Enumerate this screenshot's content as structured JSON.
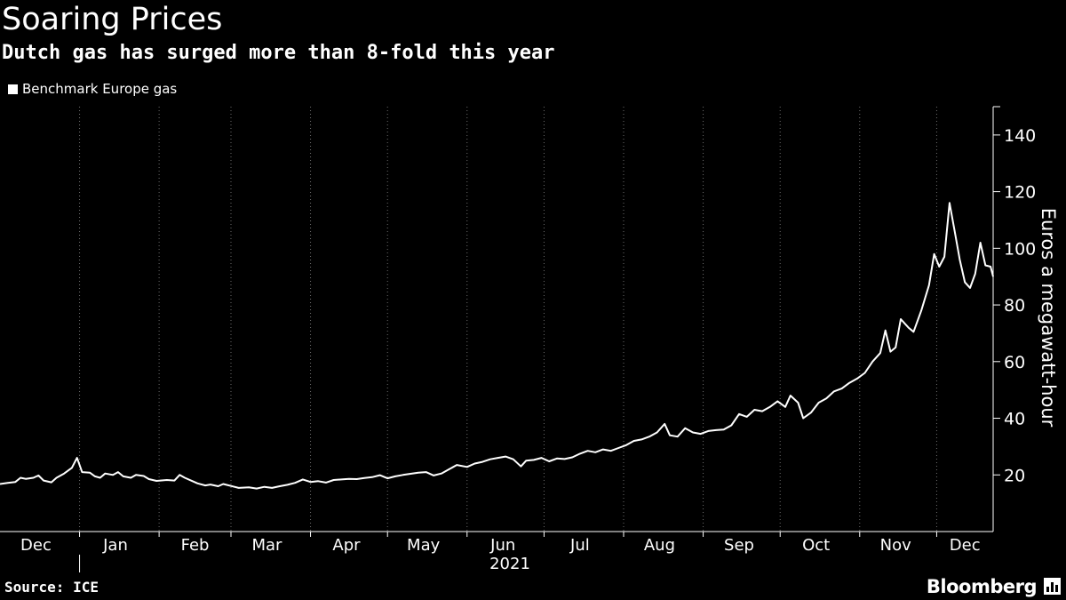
{
  "title": "Soaring Prices",
  "subtitle": "Dutch gas has surged more than 8-fold this year",
  "source": "Source: ICE",
  "brand": "Bloomberg",
  "brand_icon": "bloomberg-chart-icon",
  "colors": {
    "background": "#000000",
    "line": "#ffffff",
    "grid": "#6e6e6e",
    "text": "#ffffff"
  },
  "chart_data": {
    "type": "line",
    "title": "Soaring Prices",
    "subtitle": "Dutch gas has surged more than 8-fold this year",
    "xlabel": "2021",
    "ylabel": "Euros a megawatt-hour",
    "legend_position": "top-left",
    "grid": "vertical",
    "y_axis_side": "right",
    "xlim": [
      "2020-12-01",
      "2021-12-23"
    ],
    "ylim": [
      0,
      150
    ],
    "y_ticks": [
      20,
      40,
      60,
      80,
      100,
      120,
      140
    ],
    "x_tick_labels": [
      {
        "label": "Dec",
        "date": "2020-12-15"
      },
      {
        "label": "Jan",
        "date": "2021-01-15"
      },
      {
        "label": "Feb",
        "date": "2021-02-15"
      },
      {
        "label": "Mar",
        "date": "2021-03-15"
      },
      {
        "label": "Apr",
        "date": "2021-04-15"
      },
      {
        "label": "May",
        "date": "2021-05-15"
      },
      {
        "label": "Jun",
        "date": "2021-06-15"
      },
      {
        "label": "Jul",
        "date": "2021-07-15"
      },
      {
        "label": "Aug",
        "date": "2021-08-15"
      },
      {
        "label": "Sep",
        "date": "2021-09-15"
      },
      {
        "label": "Oct",
        "date": "2021-10-15"
      },
      {
        "label": "Nov",
        "date": "2021-11-15"
      },
      {
        "label": "Dec",
        "date": "2021-12-12"
      }
    ],
    "series": [
      {
        "name": "Benchmark Europe gas",
        "points": [
          [
            "2020-12-01",
            16.8
          ],
          [
            "2020-12-04",
            17.2
          ],
          [
            "2020-12-07",
            17.5
          ],
          [
            "2020-12-09",
            19.0
          ],
          [
            "2020-12-11",
            18.6
          ],
          [
            "2020-12-14",
            19.0
          ],
          [
            "2020-12-16",
            19.8
          ],
          [
            "2020-12-18",
            18.0
          ],
          [
            "2020-12-21",
            17.4
          ],
          [
            "2020-12-23",
            19.0
          ],
          [
            "2020-12-26",
            20.5
          ],
          [
            "2020-12-29",
            22.5
          ],
          [
            "2020-12-31",
            26.0
          ],
          [
            "2021-01-02",
            21.0
          ],
          [
            "2021-01-05",
            20.8
          ],
          [
            "2021-01-07",
            19.5
          ],
          [
            "2021-01-09",
            19.0
          ],
          [
            "2021-01-11",
            20.5
          ],
          [
            "2021-01-14",
            20.0
          ],
          [
            "2021-01-16",
            21.0
          ],
          [
            "2021-01-18",
            19.5
          ],
          [
            "2021-01-21",
            19.0
          ],
          [
            "2021-01-23",
            20.0
          ],
          [
            "2021-01-26",
            19.6
          ],
          [
            "2021-01-28",
            18.5
          ],
          [
            "2021-01-31",
            17.9
          ],
          [
            "2021-02-04",
            18.2
          ],
          [
            "2021-02-07",
            18.0
          ],
          [
            "2021-02-09",
            20.0
          ],
          [
            "2021-02-11",
            19.0
          ],
          [
            "2021-02-14",
            17.8
          ],
          [
            "2021-02-16",
            17.0
          ],
          [
            "2021-02-19",
            16.3
          ],
          [
            "2021-02-21",
            16.6
          ],
          [
            "2021-02-24",
            16.0
          ],
          [
            "2021-02-26",
            16.8
          ],
          [
            "2021-03-01",
            16.1
          ],
          [
            "2021-03-04",
            15.4
          ],
          [
            "2021-03-08",
            15.6
          ],
          [
            "2021-03-11",
            15.2
          ],
          [
            "2021-03-14",
            15.8
          ],
          [
            "2021-03-17",
            15.4
          ],
          [
            "2021-03-20",
            16.0
          ],
          [
            "2021-03-23",
            16.5
          ],
          [
            "2021-03-26",
            17.2
          ],
          [
            "2021-03-29",
            18.4
          ],
          [
            "2021-04-01",
            17.5
          ],
          [
            "2021-04-04",
            17.8
          ],
          [
            "2021-04-07",
            17.3
          ],
          [
            "2021-04-10",
            18.2
          ],
          [
            "2021-04-13",
            18.4
          ],
          [
            "2021-04-16",
            18.6
          ],
          [
            "2021-04-19",
            18.5
          ],
          [
            "2021-04-22",
            18.9
          ],
          [
            "2021-04-25",
            19.2
          ],
          [
            "2021-04-28",
            19.9
          ],
          [
            "2021-05-01",
            18.8
          ],
          [
            "2021-05-04",
            19.5
          ],
          [
            "2021-05-07",
            20.0
          ],
          [
            "2021-05-10",
            20.4
          ],
          [
            "2021-05-13",
            20.8
          ],
          [
            "2021-05-16",
            21.0
          ],
          [
            "2021-05-19",
            19.8
          ],
          [
            "2021-05-22",
            20.5
          ],
          [
            "2021-05-25",
            22.0
          ],
          [
            "2021-05-28",
            23.5
          ],
          [
            "2021-06-01",
            22.8
          ],
          [
            "2021-06-04",
            24.0
          ],
          [
            "2021-06-07",
            24.6
          ],
          [
            "2021-06-10",
            25.5
          ],
          [
            "2021-06-13",
            26.0
          ],
          [
            "2021-06-16",
            26.5
          ],
          [
            "2021-06-19",
            25.5
          ],
          [
            "2021-06-22",
            23.0
          ],
          [
            "2021-06-24",
            25.0
          ],
          [
            "2021-06-27",
            25.3
          ],
          [
            "2021-06-30",
            26.0
          ],
          [
            "2021-07-03",
            24.8
          ],
          [
            "2021-07-06",
            25.8
          ],
          [
            "2021-07-09",
            25.6
          ],
          [
            "2021-07-12",
            26.2
          ],
          [
            "2021-07-15",
            27.5
          ],
          [
            "2021-07-18",
            28.5
          ],
          [
            "2021-07-21",
            28.0
          ],
          [
            "2021-07-24",
            29.0
          ],
          [
            "2021-07-27",
            28.5
          ],
          [
            "2021-07-30",
            29.5
          ],
          [
            "2021-08-02",
            30.5
          ],
          [
            "2021-08-05",
            32.0
          ],
          [
            "2021-08-08",
            32.5
          ],
          [
            "2021-08-11",
            33.5
          ],
          [
            "2021-08-14",
            35.0
          ],
          [
            "2021-08-17",
            38.0
          ],
          [
            "2021-08-19",
            34.0
          ],
          [
            "2021-08-22",
            33.5
          ],
          [
            "2021-08-25",
            36.5
          ],
          [
            "2021-08-28",
            35.0
          ],
          [
            "2021-08-31",
            34.5
          ],
          [
            "2021-09-03",
            35.5
          ],
          [
            "2021-09-06",
            35.8
          ],
          [
            "2021-09-09",
            36.0
          ],
          [
            "2021-09-12",
            37.5
          ],
          [
            "2021-09-15",
            41.5
          ],
          [
            "2021-09-18",
            40.5
          ],
          [
            "2021-09-21",
            43.0
          ],
          [
            "2021-09-24",
            42.5
          ],
          [
            "2021-09-27",
            44.0
          ],
          [
            "2021-09-30",
            46.0
          ],
          [
            "2021-10-03",
            44.0
          ],
          [
            "2021-10-05",
            48.0
          ],
          [
            "2021-10-08",
            45.5
          ],
          [
            "2021-10-10",
            40.0
          ],
          [
            "2021-10-13",
            42.0
          ],
          [
            "2021-10-16",
            45.5
          ],
          [
            "2021-10-19",
            47.0
          ],
          [
            "2021-10-22",
            49.5
          ],
          [
            "2021-10-25",
            50.5
          ],
          [
            "2021-10-28",
            52.5
          ],
          [
            "2021-10-31",
            54.0
          ],
          [
            "2021-11-03",
            56.0
          ],
          [
            "2021-11-06",
            60.0
          ],
          [
            "2021-11-09",
            63.0
          ],
          [
            "2021-11-11",
            71.0
          ],
          [
            "2021-11-13",
            63.5
          ],
          [
            "2021-11-15",
            65.0
          ],
          [
            "2021-11-17",
            75.0
          ],
          [
            "2021-11-20",
            72.0
          ],
          [
            "2021-11-22",
            70.5
          ],
          [
            "2021-11-25",
            78.0
          ],
          [
            "2021-11-28",
            87.0
          ],
          [
            "2021-11-30",
            98.0
          ],
          [
            "2021-12-02",
            93.5
          ],
          [
            "2021-12-04",
            97.0
          ],
          [
            "2021-12-06",
            116.0
          ],
          [
            "2021-12-08",
            106.0
          ],
          [
            "2021-12-10",
            96.0
          ],
          [
            "2021-12-12",
            88.0
          ],
          [
            "2021-12-14",
            86.0
          ],
          [
            "2021-12-16",
            91.0
          ],
          [
            "2021-12-18",
            102.0
          ],
          [
            "2021-12-20",
            94.0
          ],
          [
            "2021-12-22",
            93.5
          ],
          [
            "2021-12-23",
            90.0
          ]
        ]
      }
    ]
  }
}
